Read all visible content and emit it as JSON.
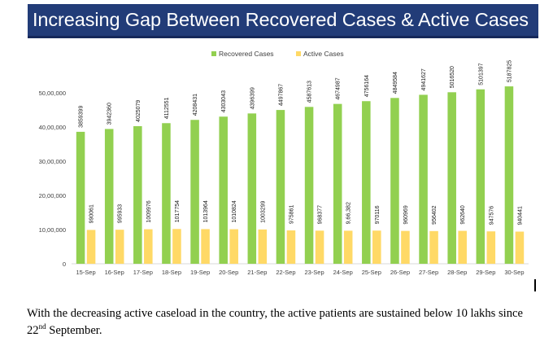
{
  "banner": {
    "title": "Increasing Gap Between Recovered Cases & Active Cases",
    "background_color": "#223c78"
  },
  "chart_data": {
    "type": "bar",
    "title": "Increasing Gap Between Recovered Cases & Active Cases",
    "xlabel": "",
    "ylabel": "",
    "ylim": [
      0,
      5500000
    ],
    "y_ticks": [
      0,
      1000000,
      2000000,
      3000000,
      4000000,
      5000000
    ],
    "y_tick_labels": [
      "0",
      "10,00,000",
      "20,00,000",
      "30,00,000",
      "40,00,000",
      "50,00,000"
    ],
    "grid": false,
    "legend_position": "top-center",
    "categories": [
      "15-Sep",
      "16-Sep",
      "17-Sep",
      "18-Sep",
      "19-Sep",
      "20-Sep",
      "21-Sep",
      "22-Sep",
      "23-Sep",
      "24-Sep",
      "25-Sep",
      "26-Sep",
      "27-Sep",
      "28-Sep",
      "29-Sep",
      "30-Sep"
    ],
    "series": [
      {
        "name": "Recovered Cases",
        "color": "#92d050",
        "values": [
          3859399,
          3942360,
          4025079,
          4112551,
          4208431,
          4303043,
          4396399,
          4497867,
          4587613,
          4674987,
          4756164,
          4849584,
          4941627,
          5016520,
          5101397,
          5187825
        ],
        "labels": [
          "3859399",
          "3942360",
          "4025079",
          "4112551",
          "4208431",
          "4303043",
          "4396399",
          "4497867",
          "4587613",
          "4674987",
          "4756164",
          "4849584",
          "4941627",
          "5016520",
          "5101397",
          "5187825"
        ]
      },
      {
        "name": "Active Cases",
        "color": "#ffd966",
        "values": [
          990061,
          995933,
          1009976,
          1017754,
          1013964,
          1010824,
          1003299,
          975861,
          968377,
          966382,
          970116,
          960969,
          956402,
          962640,
          947576,
          940441
        ],
        "labels": [
          "990061",
          "995933",
          "1009976",
          "1017754",
          "1013964",
          "1010824",
          "1003299",
          "975861",
          "968377",
          "9,66,382",
          "970116",
          "960969",
          "956402",
          "962640",
          "947576",
          "940441"
        ]
      }
    ]
  },
  "caption": {
    "text_before": "With the decreasing active caseload in the country, the active patients are sustained below 10 lakhs since 22",
    "superscript": "nd",
    "text_after": " September."
  }
}
